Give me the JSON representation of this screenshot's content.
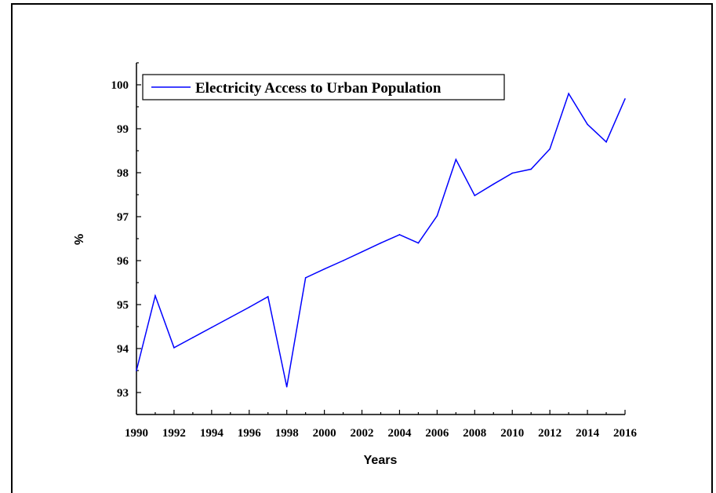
{
  "chart_data": {
    "type": "line",
    "x": [
      1990,
      1991,
      1992,
      1993,
      1994,
      1995,
      1996,
      1997,
      1998,
      1999,
      2000,
      2001,
      2002,
      2003,
      2004,
      2005,
      2006,
      2007,
      2008,
      2009,
      2010,
      2011,
      2012,
      2013,
      2014,
      2015,
      2016
    ],
    "series": [
      {
        "name": "Electricity Access to Urban Population",
        "color": "#0000ff",
        "values": [
          93.5,
          95.2,
          94.02,
          94.25,
          94.48,
          94.71,
          94.94,
          95.18,
          93.13,
          95.61,
          95.81,
          96.0,
          96.2,
          96.4,
          96.59,
          96.4,
          97.02,
          98.3,
          97.48,
          97.74,
          97.99,
          98.08,
          98.54,
          99.8,
          99.1,
          98.7,
          99.68
        ]
      }
    ],
    "xlabel": "Years",
    "ylabel": "%",
    "xlim": [
      1990,
      2016
    ],
    "ylim": [
      92.5,
      100.5
    ],
    "x_ticks": [
      "1990",
      "1992",
      "1994",
      "1996",
      "1998",
      "2000",
      "2002",
      "2004",
      "2006",
      "2008",
      "2010",
      "2012",
      "2014",
      "2016"
    ],
    "y_ticks": [
      "93",
      "94",
      "95",
      "96",
      "97",
      "98",
      "99",
      "100"
    ],
    "grid": false,
    "legend_position": "top-left"
  }
}
